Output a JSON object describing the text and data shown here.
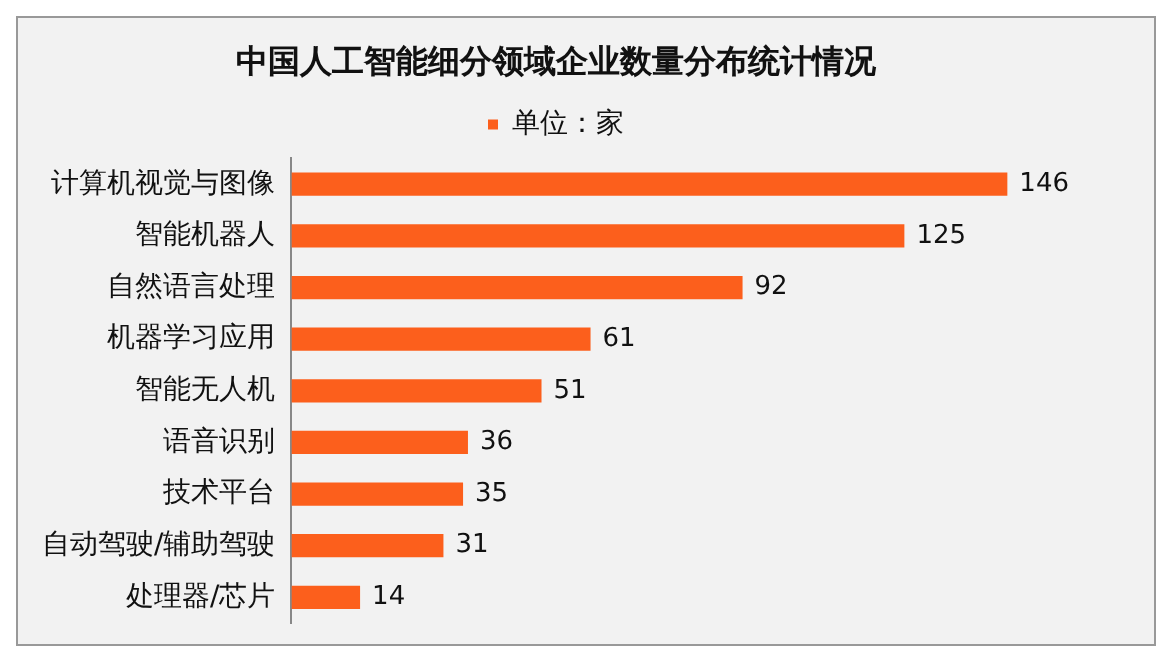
{
  "chart_data": {
    "type": "bar",
    "orientation": "horizontal",
    "title": "中国人工智能细分领域企业数量分布统计情况",
    "categories": [
      "计算机视觉与图像",
      "智能机器人",
      "自然语言处理",
      "机器学习应用",
      "智能无人机",
      "语音识别",
      "技术平台",
      "自动驾驶/辅助驾驶",
      "处理器/芯片"
    ],
    "series": [
      {
        "name": "单位：家",
        "color": "#fc5f1c",
        "values": [
          146,
          125,
          92,
          61,
          51,
          36,
          35,
          31,
          14
        ]
      }
    ],
    "data_labels": true,
    "legend": "top",
    "grid": false,
    "tick_labels": "y"
  }
}
